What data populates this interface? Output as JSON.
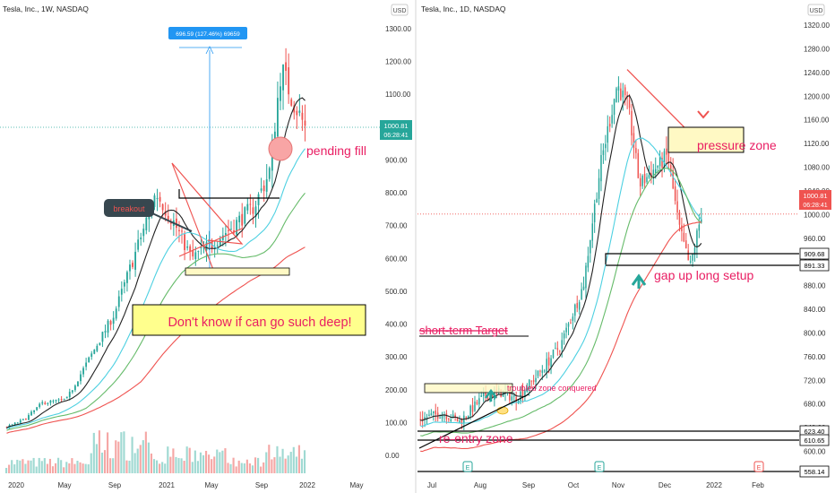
{
  "panels": [
    {
      "id": "weekly",
      "title": "Tesla, Inc., 1W, NASDAQ",
      "currency": "USD",
      "y_ticks": [
        "1300.00",
        "1200.00",
        "1100.00",
        "1000.00",
        "900.00",
        "800.00",
        "700.00",
        "600.00",
        "500.00",
        "400.00",
        "300.00",
        "200.00",
        "100.00",
        "0.00"
      ],
      "x_ticks": [
        "2020",
        "May",
        "Sep",
        "2021",
        "May",
        "Sep",
        "2022",
        "May"
      ],
      "price_label": "1000.81",
      "countdown": "06:28:41",
      "measure_label": "696.59 (127.46%) 69659",
      "annotations": {
        "breakout": "breakout",
        "pending_fill": "pending fill",
        "deep": "Don't know if can go such deep!"
      }
    },
    {
      "id": "daily",
      "title": "Tesla, Inc., 1D, NASDAQ",
      "currency": "USD",
      "y_ticks": [
        "1320.00",
        "1280.00",
        "1240.00",
        "1200.00",
        "1160.00",
        "1120.00",
        "1080.00",
        "1040.00",
        "1000.00",
        "960.00",
        "920.00",
        "880.00",
        "840.00",
        "800.00",
        "760.00",
        "720.00",
        "680.00",
        "640.00",
        "600.00"
      ],
      "x_ticks": [
        "Jul",
        "Aug",
        "Sep",
        "Oct",
        "Nov",
        "Dec",
        "2022",
        "Feb"
      ],
      "price_label": "1000.81",
      "countdown": "06:28:41",
      "level_labels": [
        "909.68",
        "891.33",
        "623.40",
        "610.65",
        "558.14"
      ],
      "annotations": {
        "pressure_zone": "pressure zone",
        "gap_up": "gap up long setup",
        "short_term_target": "short-term Target",
        "troubled_zone": "troubled zone conquered",
        "reentry_zone": "re-entry zone"
      },
      "earnings_marker": "E"
    }
  ],
  "colors": {
    "up": "#26a69a",
    "down": "#ef5350",
    "annotation_text": "#e91e63",
    "price_label_bg": "#26a69a",
    "measure_label_bg": "#2196f3",
    "ma_black": "#222222",
    "ma_teal": "#4dd0e1",
    "ma_green": "#66bb6a",
    "ma_red": "#ef5350",
    "zone_fill": "#fff9c4"
  },
  "chart_data": [
    {
      "type": "candlestick",
      "title": "Tesla, Inc., 1W, NASDAQ",
      "x": [
        "2020",
        "May",
        "Sep",
        "2021",
        "May",
        "Sep",
        "2022",
        "May"
      ],
      "ylim": [
        0,
        1300
      ],
      "close_points": [
        {
          "x": "2020",
          "y": 86
        },
        {
          "x": "May",
          "y": 160
        },
        {
          "x": "Sep",
          "y": 420
        },
        {
          "x": "2021",
          "y": 705
        },
        {
          "x": "Feb 2021",
          "y": 850
        },
        {
          "x": "May",
          "y": 590
        },
        {
          "x": "Jul 2021",
          "y": 650
        },
        {
          "x": "Sep",
          "y": 790
        },
        {
          "x": "Nov 2021",
          "y": 1220
        },
        {
          "x": "Dec 2021",
          "y": 1000.81
        }
      ],
      "current_price": 1000.81,
      "measured_move": "696.59 (127.46%) 69659"
    },
    {
      "type": "candlestick",
      "title": "Tesla, Inc., 1D, NASDAQ",
      "x": [
        "Jul",
        "Aug",
        "Sep",
        "Oct",
        "Nov",
        "Dec",
        "2022",
        "Feb"
      ],
      "ylim": [
        558,
        1320
      ],
      "close_points": [
        {
          "x": "Jul",
          "y": 660
        },
        {
          "x": "Aug",
          "y": 690
        },
        {
          "x": "Sep",
          "y": 755
        },
        {
          "x": "Oct",
          "y": 870
        },
        {
          "x": "Nov",
          "y": 1220
        },
        {
          "x": "Nov mid",
          "y": 1050
        },
        {
          "x": "Dec",
          "y": 1090
        },
        {
          "x": "Dec mid",
          "y": 910
        },
        {
          "x": "Dec late",
          "y": 1000.81
        }
      ],
      "current_price": 1000.81,
      "levels": [
        909.68,
        891.33,
        623.4,
        610.65,
        558.14
      ]
    }
  ]
}
